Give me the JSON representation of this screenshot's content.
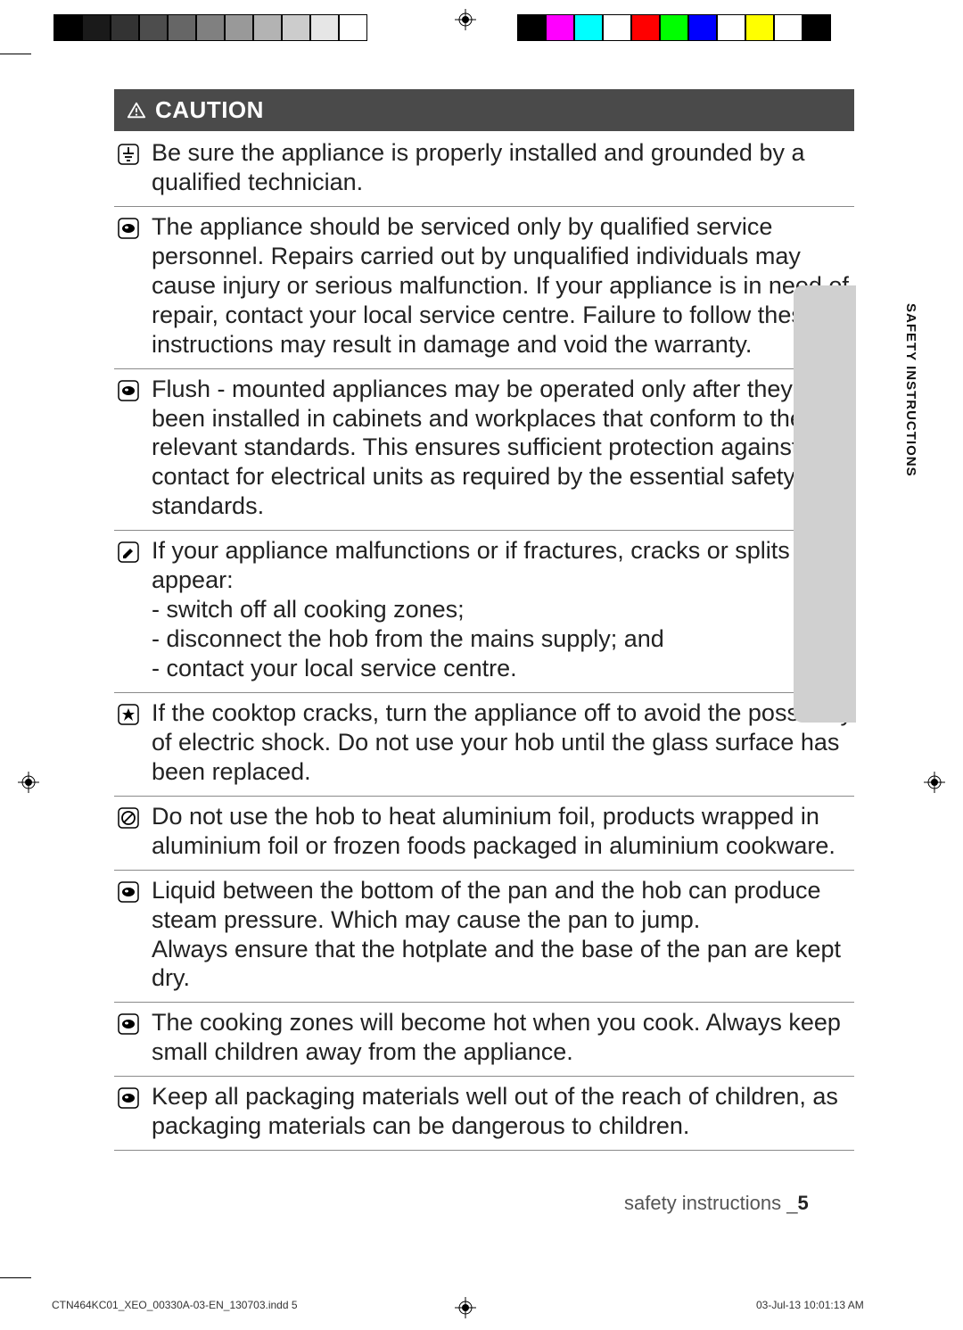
{
  "print_marks": {
    "gray_swatches": [
      "#000000",
      "#1a1a1a",
      "#333333",
      "#4d4d4d",
      "#666666",
      "#808080",
      "#999999",
      "#b3b3b3",
      "#cccccc",
      "#e6e6e6",
      "#ffffff"
    ],
    "gray_swatch_width": 32,
    "color_swatches": [
      "#000000",
      "#ff00ff",
      "#00ffff",
      "#ffffff",
      "#ff0000",
      "#00ff00",
      "#0000ff",
      "#ffffff",
      "#ffff00",
      "#ffffff",
      "#000000"
    ],
    "color_swatch_width": 32
  },
  "caution": {
    "label": "CAUTION"
  },
  "items": [
    {
      "icon": "ground",
      "text": "Be sure the appliance is properly installed and grounded by a qualified technician."
    },
    {
      "icon": "info",
      "text": "The appliance should be serviced only by qualified service personnel. Repairs carried out by unqualified individuals may cause injury or serious malfunction. If your appliance is in need of repair, contact your local service centre. Failure to follow these instructions may result in damage and void the warranty."
    },
    {
      "icon": "info",
      "text": "Flush - mounted appliances may be operated only after they have been installed in cabinets and workplaces that conform to the relevant standards. This ensures sufficient protection against contact for electrical units as required by the essential safety standards."
    },
    {
      "icon": "note",
      "text": "If your appliance malfunctions or if fractures, cracks or splits appear:\n- switch off all cooking zones;\n- disconnect the hob from the mains supply; and\n- contact your local service centre."
    },
    {
      "icon": "star",
      "text": "If the cooktop cracks, turn the appliance off to avoid the possibility of electric shock. Do not use your hob until the glass surface has been replaced."
    },
    {
      "icon": "prohibit",
      "text": "Do not use the hob to heat aluminium foil, products wrapped in aluminium foil or frozen foods packaged in aluminium cookware."
    },
    {
      "icon": "info",
      "text": "Liquid between the bottom of the pan and the hob can produce steam pressure. Which may cause the pan to jump.\nAlways ensure that the hotplate and the base of the pan are kept dry."
    },
    {
      "icon": "info",
      "text": "The cooking zones will become hot when you cook. Always keep small children away from the appliance."
    },
    {
      "icon": "info",
      "text": "Keep all packaging materials well out of the reach of children, as packaging materials can be dangerous to children."
    }
  ],
  "side_tab": {
    "label": "SAFETY INSTRUCTIONS",
    "bg": "#d0d0d0"
  },
  "footer": {
    "section": "safety instructions _",
    "page_num": "5",
    "file": "CTN464KC01_XEO_00330A-03-EN_130703.indd   5",
    "date": "03-Jul-13   10:01:13 AM"
  }
}
